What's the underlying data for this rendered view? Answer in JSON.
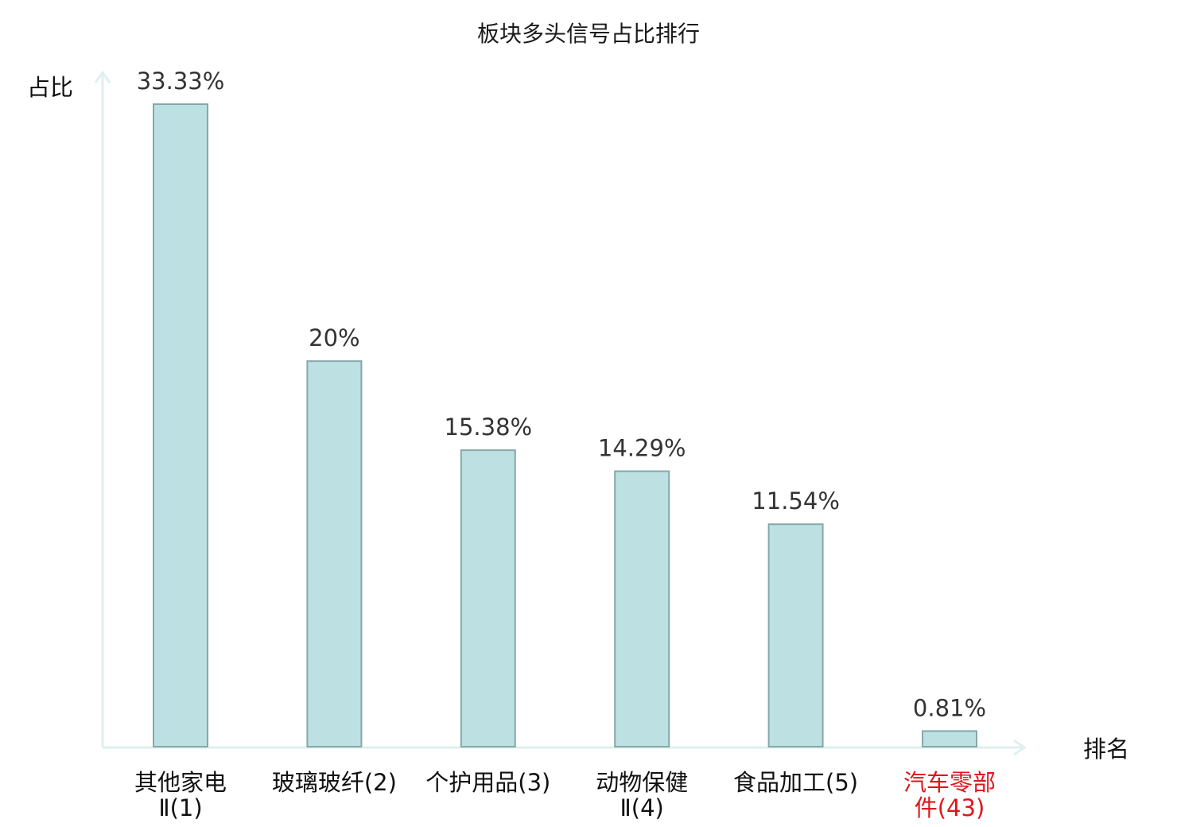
{
  "chart_data": {
    "type": "bar",
    "title": "板块多头信号占比排行",
    "xlabel": "排名",
    "ylabel": "占比",
    "ylim": [
      0,
      35
    ],
    "grid": false,
    "legend": "none",
    "categories": [
      [
        "其他家电",
        "Ⅱ(1)"
      ],
      [
        "玻璃玻纤(2)"
      ],
      [
        "个护用品(3)"
      ],
      [
        "动物保健",
        "Ⅱ(4)"
      ],
      [
        "食品加工(5)"
      ],
      [
        "汽车零部",
        "件(43)"
      ]
    ],
    "values": [
      33.33,
      20,
      15.38,
      14.29,
      11.54,
      0.81
    ],
    "value_labels": [
      "33.33%",
      "20%",
      "15.38%",
      "14.29%",
      "11.54%",
      "0.81%"
    ],
    "highlight_index": 5,
    "colors": {
      "bar_fill": "#bde0e3",
      "bar_stroke": "#86a8aa",
      "axis": "#dff0ee",
      "highlight_text": "#e0161b"
    }
  }
}
